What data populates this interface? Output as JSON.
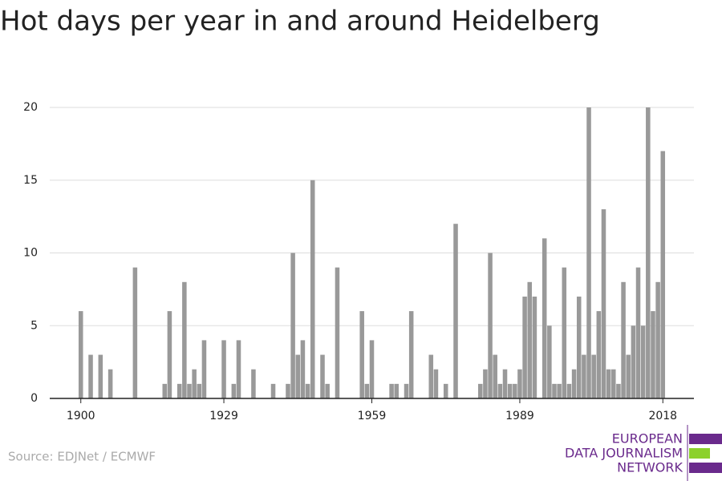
{
  "chart_data": {
    "type": "bar",
    "title": "Hot days per year in and around Heidelberg",
    "source": "Source: EDJNet / ECMWF",
    "logo": [
      "EUROPEAN",
      "DATA JOURNALISM",
      "NETWORK"
    ],
    "color": "#999999",
    "x": [
      1900,
      1902,
      1904,
      1906,
      1911,
      1917,
      1918,
      1920,
      1921,
      1922,
      1923,
      1924,
      1925,
      1929,
      1931,
      1932,
      1935,
      1939,
      1942,
      1943,
      1944,
      1945,
      1946,
      1947,
      1949,
      1950,
      1952,
      1957,
      1958,
      1959,
      1963,
      1964,
      1966,
      1967,
      1971,
      1972,
      1974,
      1976,
      1981,
      1982,
      1983,
      1984,
      1985,
      1986,
      1987,
      1988,
      1989,
      1990,
      1991,
      1992,
      1994,
      1995,
      1996,
      1997,
      1998,
      1999,
      2000,
      2001,
      2002,
      2003,
      2004,
      2005,
      2006,
      2007,
      2008,
      2009,
      2010,
      2011,
      2012,
      2013,
      2014,
      2015,
      2016,
      2017,
      2018
    ],
    "values": [
      6,
      3,
      3,
      2,
      9,
      1,
      6,
      1,
      8,
      1,
      2,
      1,
      4,
      4,
      1,
      4,
      2,
      1,
      1,
      10,
      3,
      4,
      1,
      15,
      3,
      1,
      9,
      6,
      1,
      4,
      1,
      1,
      1,
      6,
      3,
      2,
      1,
      12,
      1,
      2,
      10,
      3,
      1,
      2,
      1,
      1,
      2,
      7,
      8,
      7,
      11,
      5,
      1,
      1,
      9,
      1,
      2,
      7,
      3,
      20,
      3,
      6,
      13,
      2,
      2,
      1,
      8,
      3,
      5,
      9,
      5,
      20,
      6,
      8,
      17
    ],
    "xlim": [
      1893.7,
      2024.3
    ],
    "xticks": [
      1900,
      1929,
      1959,
      1989,
      2018
    ],
    "ylim": [
      0,
      20
    ],
    "yticks": [
      0,
      5,
      10,
      15,
      20
    ],
    "grid": true
  }
}
